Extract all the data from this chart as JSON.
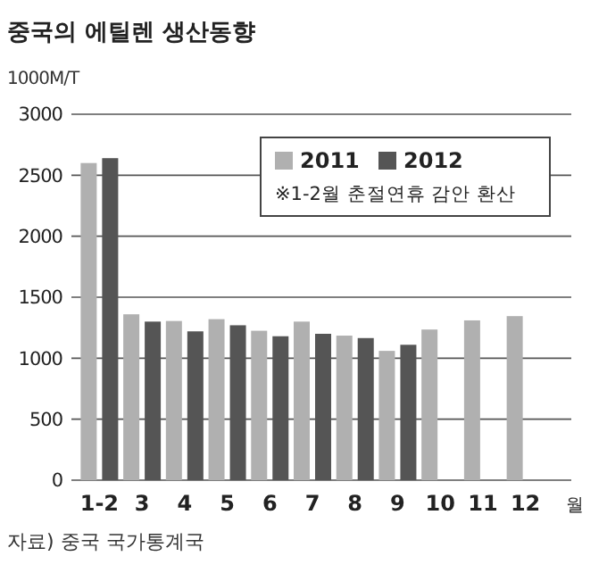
{
  "chart_data": {
    "type": "bar",
    "title": "중국의 에틸렌 생산동향",
    "ylabel": "1000M/T",
    "xlabel": "월",
    "categories": [
      "1-2",
      "3",
      "4",
      "5",
      "6",
      "7",
      "8",
      "9",
      "10",
      "11",
      "12"
    ],
    "series": [
      {
        "name": "2011",
        "color": "#b0b0b0",
        "values": [
          2600,
          1360,
          1305,
          1320,
          1225,
          1300,
          1185,
          1060,
          1235,
          1310,
          1345
        ]
      },
      {
        "name": "2012",
        "color": "#555555",
        "values": [
          2640,
          1300,
          1220,
          1270,
          1180,
          1200,
          1165,
          1110,
          null,
          null,
          null
        ]
      }
    ],
    "ylim": [
      0,
      3000
    ],
    "yticks": [
      0,
      500,
      1000,
      1500,
      2000,
      2500,
      3000
    ],
    "grid": "y",
    "legend": "top right",
    "annotations": [
      "※1-2월 춘절연휴 감안 환산",
      "자료) 중국 국가통계국"
    ]
  }
}
